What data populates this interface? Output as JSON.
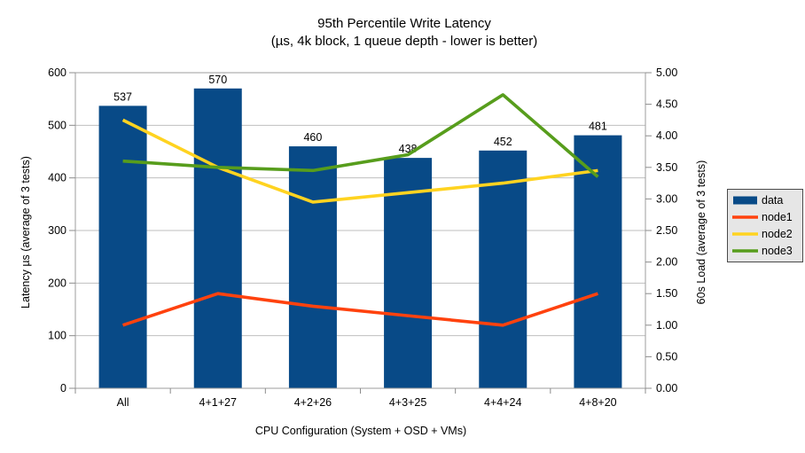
{
  "chart_data": {
    "type": "combo-bar-line",
    "title": "95th Percentile Write Latency",
    "subtitle": "(µs, 4k block, 1 queue depth - lower is better)",
    "categories": [
      "All",
      "4+1+27",
      "4+2+26",
      "4+3+25",
      "4+4+24",
      "4+8+20"
    ],
    "xlabel": "CPU Configuration (System + OSD + VMs)",
    "ylabel_left": "Latency µs (average of 3 tests)",
    "ylabel_right": "60s Load (average of 3 tests)",
    "axis_left": {
      "min": 0,
      "max": 600,
      "step": 100
    },
    "axis_right": {
      "min": 0,
      "max": 5,
      "step": 0.5,
      "decimals": 2
    },
    "grid": "horizontal-left-axis",
    "legend_position": "right",
    "bar_series": {
      "name": "data",
      "axis": "left",
      "color": "#084a87",
      "values": [
        537,
        570,
        460,
        438,
        452,
        481
      ],
      "value_labels": [
        "537",
        "570",
        "460",
        "438",
        "452",
        "481"
      ]
    },
    "line_series": [
      {
        "name": "node1",
        "axis": "right",
        "color": "#ff420e",
        "values": [
          1.0,
          1.5,
          1.3,
          1.15,
          1.0,
          1.5
        ]
      },
      {
        "name": "node2",
        "axis": "right",
        "color": "#ffd320",
        "values": [
          4.25,
          3.5,
          2.95,
          3.1,
          3.25,
          3.45
        ]
      },
      {
        "name": "node3",
        "axis": "right",
        "color": "#579d1c",
        "values": [
          3.6,
          3.5,
          3.45,
          3.7,
          4.65,
          3.35
        ]
      }
    ]
  },
  "legend": {
    "items": [
      {
        "label": "data",
        "color": "#084a87",
        "swatch": "bar"
      },
      {
        "label": "node1",
        "color": "#ff420e",
        "swatch": "line"
      },
      {
        "label": "node2",
        "color": "#ffd320",
        "swatch": "line"
      },
      {
        "label": "node3",
        "color": "#579d1c",
        "swatch": "line"
      }
    ],
    "background": "#e6e6e6",
    "border_color": "#4a4a4a"
  },
  "style": {
    "grid_color": "#bfbfbf",
    "axis_color": "#9e9e9e",
    "tick_color": "#8c8c8c",
    "background": "#ffffff"
  }
}
